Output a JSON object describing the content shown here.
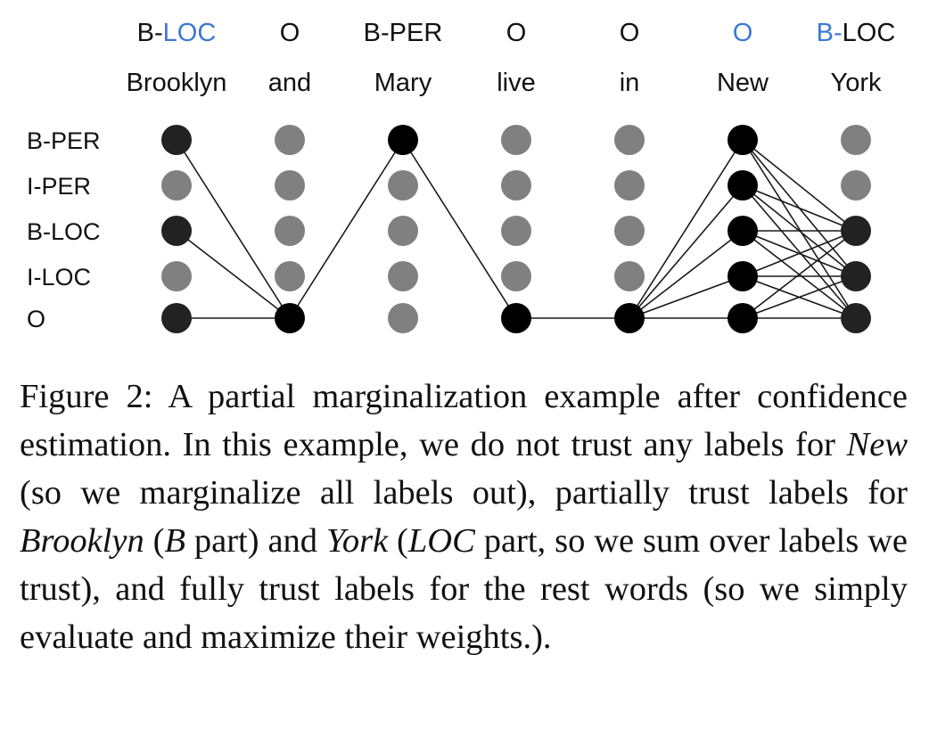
{
  "figure": {
    "tags": [
      {
        "prefix": "B-",
        "rest": "LOC",
        "prefix_color": "#111111",
        "rest_color": "#3a78d8"
      },
      {
        "prefix": "O",
        "rest": "",
        "prefix_color": "#111111",
        "rest_color": "#111111"
      },
      {
        "prefix": "B-PER",
        "rest": "",
        "prefix_color": "#111111",
        "rest_color": "#111111"
      },
      {
        "prefix": "O",
        "rest": "",
        "prefix_color": "#111111",
        "rest_color": "#111111"
      },
      {
        "prefix": "O",
        "rest": "",
        "prefix_color": "#111111",
        "rest_color": "#111111"
      },
      {
        "prefix": "O",
        "rest": "",
        "prefix_color": "#3a78d8",
        "rest_color": "#3a78d8"
      },
      {
        "prefix": "B-",
        "rest": "LOC",
        "prefix_color": "#3a78d8",
        "rest_color": "#111111"
      }
    ],
    "words": [
      {
        "text": "Brooklyn",
        "color": "#3a78d8"
      },
      {
        "text": "and",
        "color": "#111111"
      },
      {
        "text": "Mary",
        "color": "#111111"
      },
      {
        "text": "live",
        "color": "#111111"
      },
      {
        "text": "in",
        "color": "#111111"
      },
      {
        "text": "New",
        "color": "#3a78d8"
      },
      {
        "text": "York",
        "color": "#3a78d8"
      }
    ],
    "row_labels": [
      "B-PER",
      "I-PER",
      "B-LOC",
      "I-LOC",
      "O"
    ],
    "active_nodes": [
      [
        0,
        2,
        4
      ],
      [
        4
      ],
      [
        0
      ],
      [
        4
      ],
      [
        4
      ],
      [
        0,
        1,
        2,
        3,
        4
      ],
      [
        2,
        3,
        4
      ]
    ],
    "active_colors": [
      "#222222",
      "#000000",
      "#000000",
      "#000000",
      "#000000",
      "#000000",
      "#222222"
    ],
    "inactive_color": "#808080"
  },
  "caption": {
    "p1": "Figure 2: A partial marginalization example after confidence estimation. In this example, we do not trust any labels for ",
    "em1": "New",
    "p2": " (so we marginalize all labels out), partially trust labels for ",
    "em2": "Brooklyn",
    "p3": " (",
    "em3": "B",
    "p4": " part) and ",
    "em4": "York",
    "p5": " (",
    "em5": "LOC",
    "p6": " part, so we sum over labels we trust), and fully trust labels for the rest words (so we simply evaluate and maximize their weights.)."
  }
}
